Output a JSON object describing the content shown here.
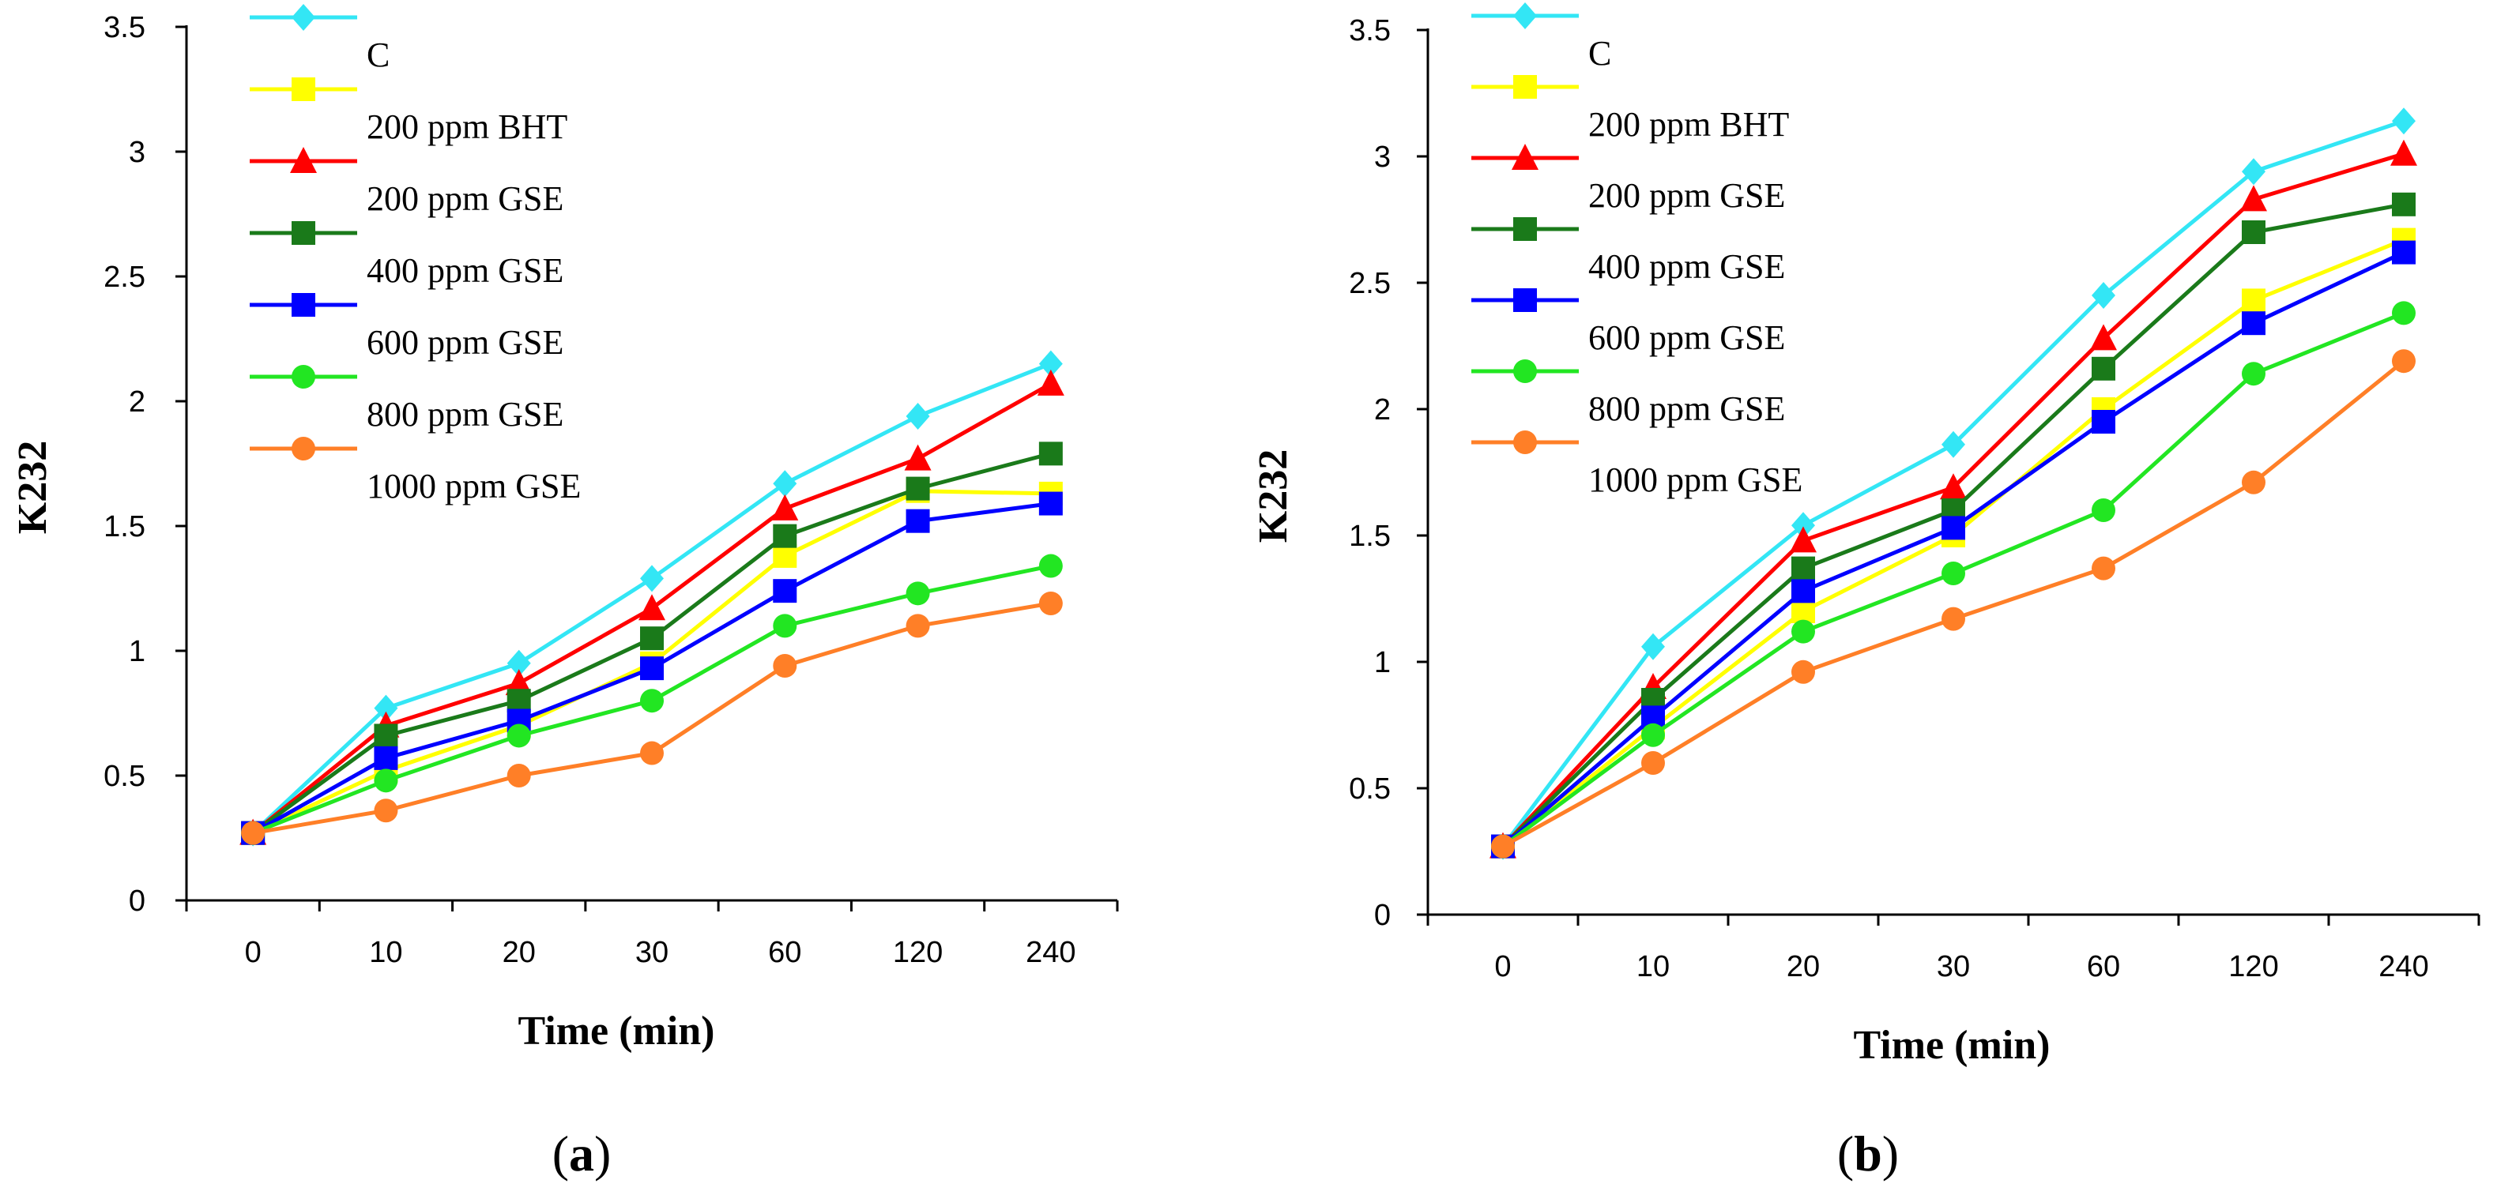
{
  "chart_data": [
    {
      "type": "line",
      "panel_label": "a",
      "title": "",
      "xlabel": "Time (min)",
      "ylabel": "K232",
      "categories": [
        "0",
        "10",
        "20",
        "30",
        "60",
        "120",
        "240"
      ],
      "ylim": [
        0,
        3.5
      ],
      "yticks": [
        "0",
        "0.5",
        "1",
        "1.5",
        "2",
        "2.5",
        "3",
        "3.5"
      ],
      "grid": false,
      "legend_position": "top-left",
      "series": [
        {
          "name": "C",
          "color": "#33e6f5",
          "marker": "diamond",
          "values": [
            0.27,
            0.77,
            0.95,
            1.29,
            1.67,
            1.94,
            2.15
          ]
        },
        {
          "name": "200 ppm BHT",
          "color": "#ffff00",
          "marker": "square",
          "values": [
            0.27,
            0.52,
            0.7,
            0.95,
            1.38,
            1.64,
            1.63
          ]
        },
        {
          "name": "200 ppm GSE",
          "color": "#ff0000",
          "marker": "triangle",
          "values": [
            0.27,
            0.7,
            0.87,
            1.17,
            1.57,
            1.77,
            2.07
          ]
        },
        {
          "name": "400 ppm GSE",
          "color": "#1a7a1a",
          "marker": "square",
          "values": [
            0.27,
            0.66,
            0.8,
            1.05,
            1.46,
            1.65,
            1.79
          ]
        },
        {
          "name": "600 ppm GSE",
          "color": "#0000ff",
          "marker": "square",
          "values": [
            0.27,
            0.57,
            0.72,
            0.93,
            1.24,
            1.52,
            1.59
          ]
        },
        {
          "name": "800 ppm GSE",
          "color": "#22e622",
          "marker": "circle",
          "values": [
            0.27,
            0.48,
            0.66,
            0.8,
            1.1,
            1.23,
            1.34
          ]
        },
        {
          "name": "1000 ppm GSE",
          "color": "#ff7f27",
          "marker": "circle",
          "values": [
            0.27,
            0.36,
            0.5,
            0.59,
            0.94,
            1.1,
            1.19
          ]
        }
      ]
    },
    {
      "type": "line",
      "panel_label": "b",
      "title": "",
      "xlabel": "Time (min)",
      "ylabel": "K232",
      "categories": [
        "0",
        "10",
        "20",
        "30",
        "60",
        "120",
        "240"
      ],
      "ylim": [
        0,
        3.5
      ],
      "yticks": [
        "0",
        "0.5",
        "1",
        "1.5",
        "2",
        "2.5",
        "3",
        "3.5"
      ],
      "grid": false,
      "legend_position": "top-left",
      "series": [
        {
          "name": "C",
          "color": "#33e6f5",
          "marker": "diamond",
          "values": [
            0.27,
            1.06,
            1.54,
            1.86,
            2.45,
            2.94,
            3.14
          ]
        },
        {
          "name": "200 ppm BHT",
          "color": "#ffff00",
          "marker": "square",
          "values": [
            0.27,
            0.74,
            1.2,
            1.5,
            2.0,
            2.43,
            2.67
          ]
        },
        {
          "name": "200 ppm GSE",
          "color": "#ff0000",
          "marker": "triangle",
          "values": [
            0.27,
            0.9,
            1.48,
            1.69,
            2.28,
            2.83,
            3.01
          ]
        },
        {
          "name": "400 ppm GSE",
          "color": "#1a7a1a",
          "marker": "square",
          "values": [
            0.27,
            0.85,
            1.37,
            1.6,
            2.16,
            2.7,
            2.81
          ]
        },
        {
          "name": "600 ppm GSE",
          "color": "#0000ff",
          "marker": "square",
          "values": [
            0.27,
            0.78,
            1.28,
            1.53,
            1.95,
            2.34,
            2.62
          ]
        },
        {
          "name": "800 ppm GSE",
          "color": "#22e622",
          "marker": "circle",
          "values": [
            0.27,
            0.71,
            1.12,
            1.35,
            1.6,
            2.14,
            2.38
          ]
        },
        {
          "name": "1000 ppm GSE",
          "color": "#ff7f27",
          "marker": "circle",
          "values": [
            0.27,
            0.6,
            0.96,
            1.17,
            1.37,
            1.71,
            2.19
          ]
        }
      ]
    }
  ]
}
